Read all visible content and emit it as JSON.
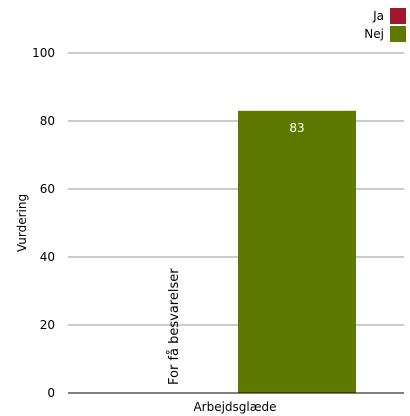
{
  "chart_data": {
    "type": "bar",
    "categories": [
      "Arbejdsglæde"
    ],
    "series": [
      {
        "name": "Ja",
        "color": "#a0182d",
        "values": [
          null
        ],
        "note": "For få besvarelser"
      },
      {
        "name": "Nej",
        "color": "#5f7800",
        "values": [
          83
        ]
      }
    ],
    "data_labels": [
      "83"
    ],
    "xlabel": "Arbejdsglæde",
    "ylabel": "Vurdering",
    "ylim": [
      0,
      100
    ],
    "yticks": [
      0,
      20,
      40,
      60,
      80,
      100
    ],
    "grid": true,
    "legend": "top-right"
  }
}
